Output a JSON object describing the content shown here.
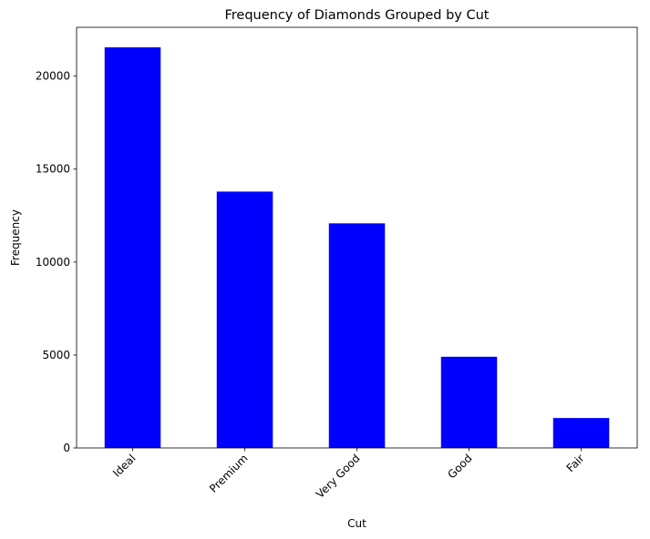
{
  "chart_data": {
    "type": "bar",
    "title": "Frequency of Diamonds Grouped by Cut",
    "xlabel": "Cut",
    "ylabel": "Frequency",
    "categories": [
      "Ideal",
      "Premium",
      "Very Good",
      "Good",
      "Fair"
    ],
    "values": [
      21551,
      13791,
      12082,
      4906,
      1610
    ],
    "ylim": [
      0,
      22628
    ],
    "yticks": [
      0,
      5000,
      10000,
      15000,
      20000
    ],
    "bar_color": "#0000ff",
    "grid": false,
    "legend": "none"
  }
}
